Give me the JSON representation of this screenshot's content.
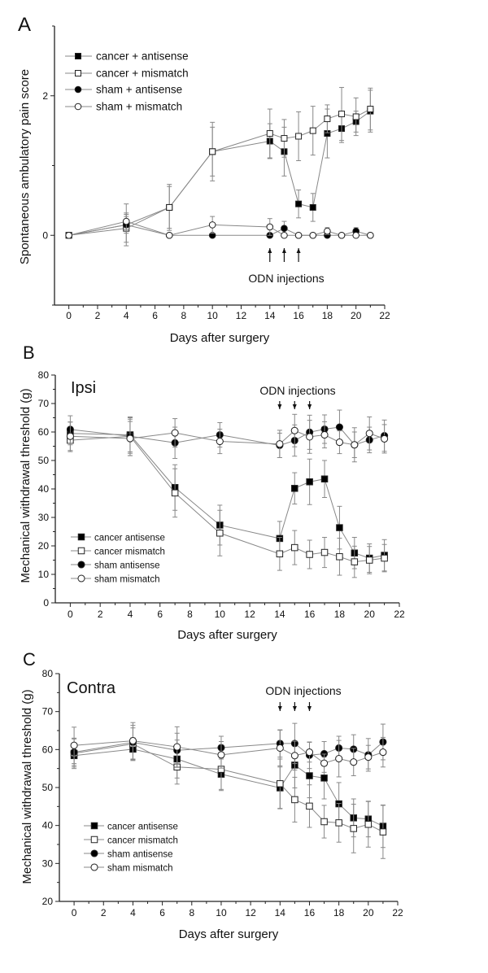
{
  "chart_data": [
    {
      "type": "line",
      "panel_label": "A",
      "annotation": "",
      "xlabel": "Days after surgery",
      "ylabel": "Spontaneous ambulatory pain score",
      "xlim": [
        -1,
        22
      ],
      "ylim": [
        -1,
        3
      ],
      "xticks": [
        0,
        2,
        4,
        6,
        8,
        10,
        12,
        14,
        16,
        18,
        20,
        22
      ],
      "yticks": [
        0,
        2
      ],
      "grid": false,
      "legend": "top-left",
      "odn_label": "ODN injections",
      "odn_days": [
        14,
        15,
        16
      ],
      "odn_arrow_direction": "up",
      "x": [
        0,
        4,
        7,
        10,
        14,
        15,
        16,
        17,
        18,
        19,
        20,
        21
      ],
      "series": [
        {
          "name": "cancer + antisense",
          "marker": "filled-square",
          "values": [
            0,
            0.15,
            0.4,
            1.2,
            1.35,
            1.2,
            0.45,
            0.4,
            1.46,
            1.53,
            1.63,
            1.78
          ],
          "errors": [
            0,
            0.3,
            0.3,
            0.35,
            0.25,
            0.35,
            0.2,
            0.2,
            0.35,
            0.2,
            0.15,
            0.3
          ]
        },
        {
          "name": "cancer + mismatch",
          "marker": "open-square",
          "values": [
            0,
            0.1,
            0.4,
            1.2,
            1.46,
            1.39,
            1.42,
            1.5,
            1.67,
            1.74,
            1.7,
            1.81
          ],
          "errors": [
            0,
            0.2,
            0.33,
            0.42,
            0.35,
            0.27,
            0.35,
            0.35,
            0.2,
            0.38,
            0.27,
            0.3
          ]
        },
        {
          "name": "sham + antisense",
          "marker": "filled-circle",
          "values": [
            0,
            0.15,
            0,
            0,
            0,
            0.1,
            0,
            0,
            0,
            0,
            0.06,
            0
          ],
          "errors": [
            0,
            0.12,
            0,
            0,
            0,
            0.1,
            0,
            0,
            0,
            0,
            0.05,
            0
          ]
        },
        {
          "name": "sham + mismatch",
          "marker": "open-circle",
          "values": [
            0,
            0.2,
            0,
            0.15,
            0.12,
            0,
            0,
            0,
            0.06,
            0,
            0,
            0
          ],
          "errors": [
            0,
            0.12,
            0,
            0.12,
            0.12,
            0,
            0,
            0,
            0.05,
            0,
            0,
            0
          ]
        }
      ]
    },
    {
      "type": "line",
      "panel_label": "B",
      "annotation": "Ipsi",
      "xlabel": "Days after surgery",
      "ylabel": "Mechanical withdrawal threshold (g)",
      "xlim": [
        -1,
        22
      ],
      "ylim": [
        0,
        80
      ],
      "xticks": [
        0,
        2,
        4,
        6,
        8,
        10,
        12,
        14,
        16,
        18,
        20,
        22
      ],
      "yticks": [
        0,
        10,
        20,
        30,
        40,
        50,
        60,
        70,
        80
      ],
      "grid": false,
      "legend": "bottom-left",
      "odn_label": "ODN injections",
      "odn_days": [
        14,
        15,
        16
      ],
      "odn_arrow_direction": "down",
      "x": [
        0,
        4,
        7,
        10,
        14,
        15,
        16,
        17,
        18,
        19,
        20,
        21
      ],
      "series": [
        {
          "name": "cancer antisense",
          "marker": "filled-square",
          "values": [
            59.5,
            59,
            40.5,
            27.3,
            22.6,
            40.2,
            42.5,
            43.5,
            26.4,
            17.5,
            15.7,
            16.7
          ],
          "errors": [
            4,
            6,
            8,
            7,
            6,
            5.5,
            8,
            6.5,
            7.5,
            5.5,
            5,
            5.5
          ]
        },
        {
          "name": "cancer mismatch",
          "marker": "open-square",
          "values": [
            57.1,
            58.5,
            38.6,
            24.5,
            17.2,
            19.4,
            17,
            17.7,
            16.2,
            14.4,
            15,
            15.7
          ],
          "errors": [
            4,
            6,
            8.5,
            8,
            5.8,
            6,
            5,
            5.3,
            6.5,
            5.5,
            4.8,
            4.8
          ]
        },
        {
          "name": "sham antisense",
          "marker": "filled-circle",
          "values": [
            60.9,
            58.5,
            56.2,
            59,
            55.3,
            57,
            59.9,
            61,
            61.7,
            55.5,
            57.2,
            58.7
          ],
          "errors": [
            4.8,
            6.8,
            5.5,
            4.3,
            4.3,
            5.5,
            6,
            5,
            6,
            6,
            4.5,
            5.5
          ]
        },
        {
          "name": "sham mismatch",
          "marker": "open-circle",
          "values": [
            58.5,
            57.7,
            59.7,
            56.7,
            55.8,
            60.5,
            58.3,
            59,
            56.4,
            55.5,
            59.5,
            57.6
          ],
          "errors": [
            5,
            6,
            5,
            4.3,
            4.8,
            5.7,
            5.8,
            4.6,
            4,
            4.5,
            5.8,
            5
          ]
        }
      ]
    },
    {
      "type": "line",
      "panel_label": "C",
      "annotation": "Contra",
      "xlabel": "Days after surgery",
      "ylabel": "Mechanical withdrawal threshold (g)",
      "xlim": [
        -1,
        22
      ],
      "ylim": [
        20,
        80
      ],
      "xticks": [
        0,
        2,
        4,
        6,
        8,
        10,
        12,
        14,
        16,
        18,
        20,
        22
      ],
      "yticks": [
        20,
        30,
        40,
        50,
        60,
        70,
        80
      ],
      "grid": false,
      "legend": "bottom-left",
      "odn_label": "ODN injections",
      "odn_days": [
        14,
        15,
        16
      ],
      "odn_arrow_direction": "down",
      "x": [
        0,
        4,
        7,
        10,
        14,
        15,
        16,
        17,
        18,
        19,
        20,
        21
      ],
      "series": [
        {
          "name": "cancer antisense",
          "marker": "filled-square",
          "values": [
            58.4,
            60.1,
            57.5,
            53.5,
            49.9,
            55.9,
            53.1,
            52.5,
            45.7,
            42,
            41.7,
            39.8
          ],
          "errors": [
            3,
            3,
            5,
            4.3,
            5.5,
            6,
            5.8,
            5.5,
            5.6,
            5,
            4.7,
            5.6
          ]
        },
        {
          "name": "cancer mismatch",
          "marker": "open-square",
          "values": [
            59,
            61.5,
            55.4,
            54.8,
            51,
            46.8,
            45.1,
            41,
            40.7,
            39.2,
            40.3,
            38.3
          ],
          "errors": [
            4,
            4.2,
            4.5,
            5.3,
            6.5,
            5.9,
            5.6,
            4.3,
            5.1,
            6.4,
            6,
            7
          ]
        },
        {
          "name": "sham antisense",
          "marker": "filled-circle",
          "values": [
            59.3,
            61.9,
            59.8,
            60.5,
            61.6,
            61.6,
            58.5,
            58.9,
            60.4,
            60.1,
            58.6,
            62
          ],
          "errors": [
            3.5,
            4.5,
            4.5,
            3,
            3.6,
            5.3,
            3.5,
            3.2,
            3.1,
            3.8,
            4.3,
            4.7
          ]
        },
        {
          "name": "sham mismatch",
          "marker": "open-circle",
          "values": [
            61.1,
            62.3,
            60.7,
            58.6,
            60.4,
            58.4,
            59.3,
            56.4,
            57.6,
            56.7,
            58,
            59.3
          ],
          "errors": [
            4.8,
            4.8,
            5.3,
            3.5,
            4.7,
            3.8,
            2.6,
            2.4,
            4.8,
            3.6,
            3.1,
            3.9
          ]
        }
      ]
    }
  ]
}
